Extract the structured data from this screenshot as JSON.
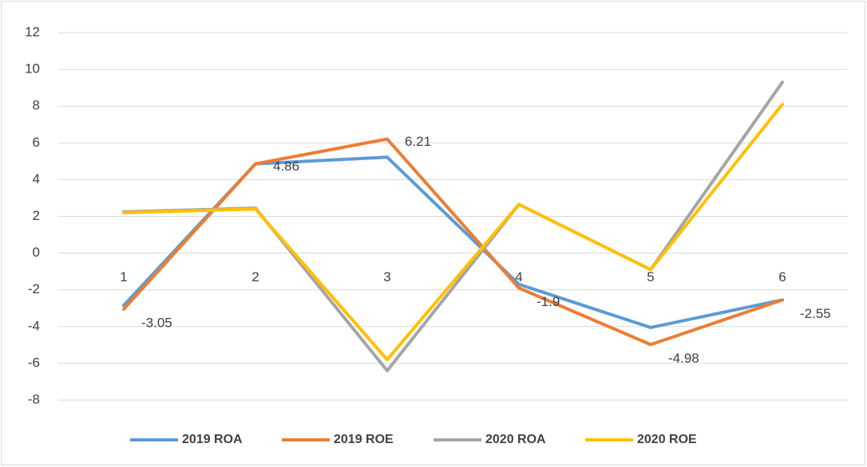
{
  "chart_data": {
    "type": "line",
    "categories": [
      "1",
      "2",
      "3",
      "4",
      "5",
      "6"
    ],
    "series": [
      {
        "name": "2019 ROA",
        "color": "#5b9bd5",
        "values": [
          -2.85,
          4.86,
          5.22,
          -1.7,
          -4.05,
          -2.55
        ]
      },
      {
        "name": "2019 ROE",
        "color": "#ed7d31",
        "values": [
          -3.05,
          4.86,
          6.21,
          -1.9,
          -4.98,
          -2.55
        ],
        "data_labels": true
      },
      {
        "name": "2020 ROA",
        "color": "#a5a5a5",
        "values": [
          2.25,
          2.45,
          -6.4,
          2.65,
          -0.9,
          9.3
        ]
      },
      {
        "name": "2020 ROE",
        "color": "#ffc000",
        "values": [
          2.2,
          2.4,
          -5.8,
          2.65,
          -0.9,
          8.1
        ]
      }
    ],
    "ylim": [
      -8,
      12
    ],
    "yticks": [
      -8,
      -6,
      -4,
      -2,
      0,
      2,
      4,
      6,
      8,
      10,
      12
    ],
    "grid": true,
    "legend": "bottom"
  }
}
